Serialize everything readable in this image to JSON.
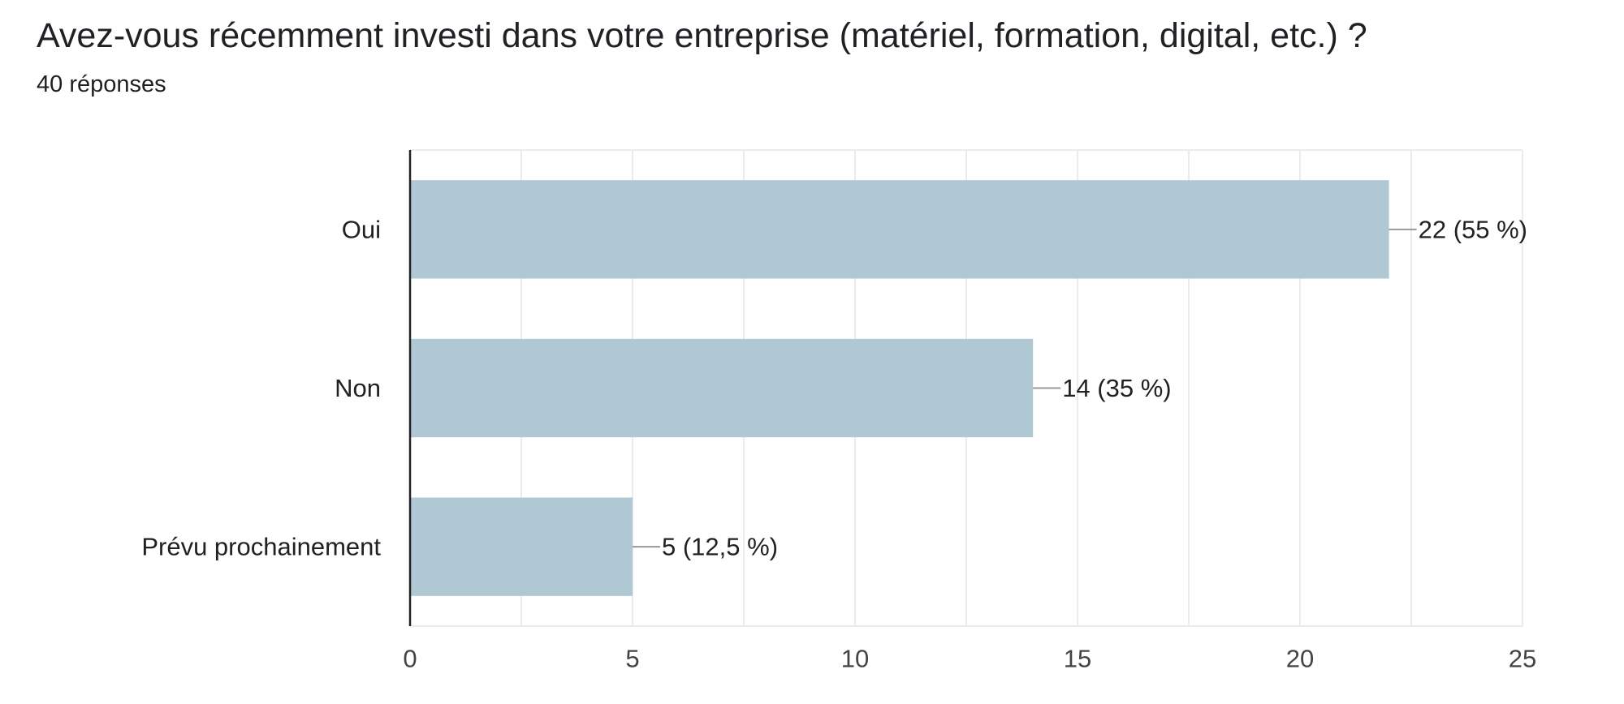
{
  "page": {
    "title": "Avez-vous récemment investi dans votre entreprise (matériel, formation, digital, etc.) ?",
    "response_count": "40 réponses"
  },
  "colors": {
    "bar": "#b0c8d4",
    "gridline": "#ebebeb",
    "axis": "#202124",
    "leader": "#999999"
  },
  "chart_data": {
    "type": "bar",
    "orientation": "horizontal",
    "categories": [
      "Oui",
      "Non",
      "Prévu prochainement"
    ],
    "values": [
      22,
      14,
      5
    ],
    "data_labels": [
      "22 (55 %)",
      "14 (35 %)",
      "5 (12,5 %)"
    ],
    "xlim": [
      0,
      25
    ],
    "x_ticks": [
      0,
      5,
      10,
      15,
      20,
      25
    ],
    "x_tick_labels": [
      "0",
      "5",
      "10",
      "15",
      "20",
      "25"
    ],
    "grid": true,
    "legend": "none"
  }
}
